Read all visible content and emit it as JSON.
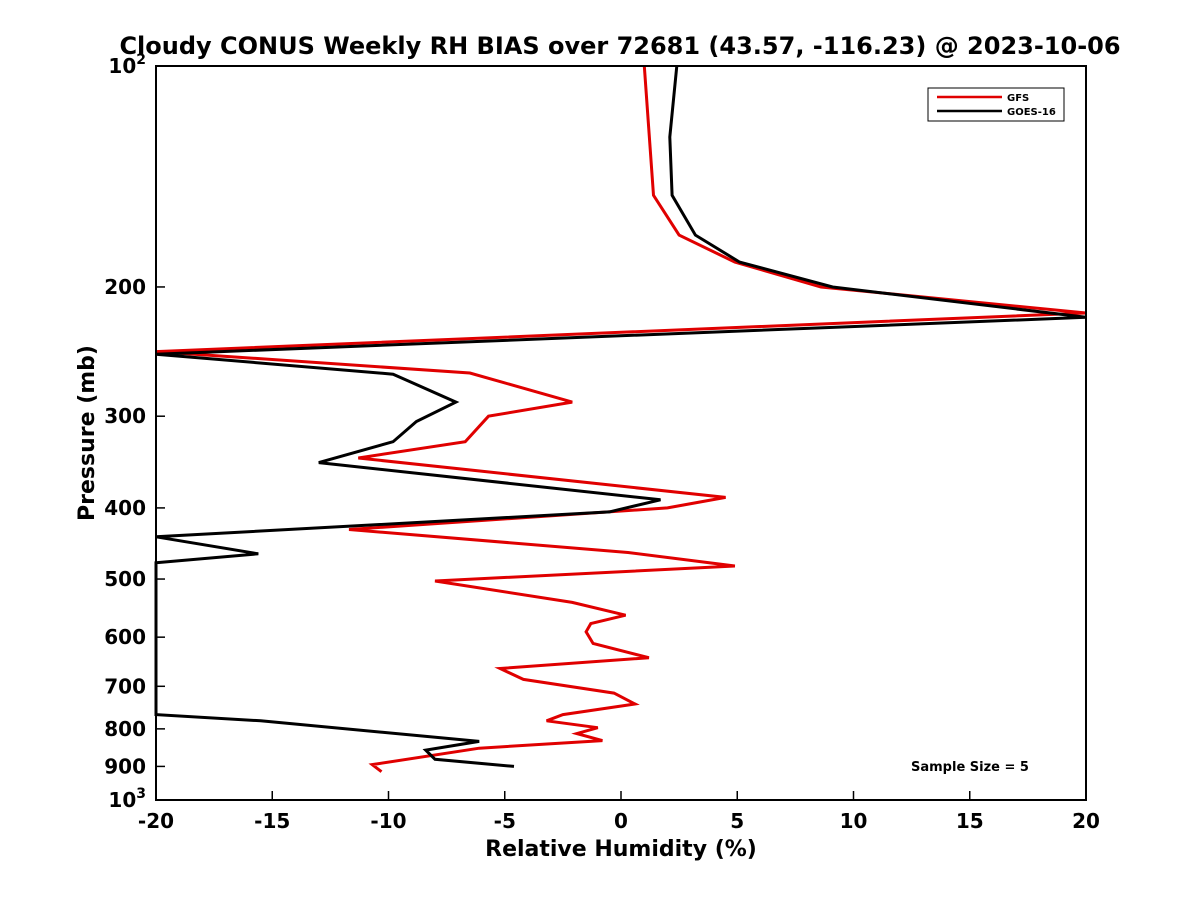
{
  "chart_data": {
    "type": "line",
    "title": "Cloudy CONUS Weekly RH BIAS over 72681 (43.57, -116.23) @ 2023-10-06",
    "xlabel": "Relative Humidity (%)",
    "ylabel": "Pressure (mb)",
    "xlim": [
      -20,
      20
    ],
    "ylim": [
      100,
      1000
    ],
    "y_scale": "log",
    "y_direction": "reversed",
    "x_ticks": [
      "-20",
      "-15",
      "-10",
      "-5",
      "0",
      "5",
      "10",
      "15",
      "20"
    ],
    "y_ticks": [
      {
        "value": 100,
        "label": "10",
        "sup": "2"
      },
      {
        "value": 200,
        "label": "200",
        "sup": ""
      },
      {
        "value": 300,
        "label": "300",
        "sup": ""
      },
      {
        "value": 400,
        "label": "400",
        "sup": ""
      },
      {
        "value": 500,
        "label": "500",
        "sup": ""
      },
      {
        "value": 600,
        "label": "600",
        "sup": ""
      },
      {
        "value": 700,
        "label": "700",
        "sup": ""
      },
      {
        "value": 800,
        "label": "800",
        "sup": ""
      },
      {
        "value": 900,
        "label": "900",
        "sup": ""
      },
      {
        "value": 1000,
        "label": "10",
        "sup": "3"
      }
    ],
    "grid": false,
    "legend_position": "top-right",
    "annotation": "Sample Size = 5",
    "series": [
      {
        "name": "GFS",
        "color": "#e00000",
        "points": [
          {
            "x": 1.0,
            "y": 100
          },
          {
            "x": 1.4,
            "y": 150
          },
          {
            "x": 2.5,
            "y": 170
          },
          {
            "x": 4.9,
            "y": 185
          },
          {
            "x": 8.6,
            "y": 200
          },
          {
            "x": 20.0,
            "y": 217
          },
          {
            "x": -20.0,
            "y": 245
          },
          {
            "x": -6.5,
            "y": 262
          },
          {
            "x": -2.1,
            "y": 287
          },
          {
            "x": -5.7,
            "y": 300
          },
          {
            "x": -6.7,
            "y": 325
          },
          {
            "x": -11.3,
            "y": 342
          },
          {
            "x": 4.5,
            "y": 387
          },
          {
            "x": 2.0,
            "y": 400
          },
          {
            "x": -11.7,
            "y": 428
          },
          {
            "x": 0.3,
            "y": 460
          },
          {
            "x": 4.9,
            "y": 480
          },
          {
            "x": -8.0,
            "y": 503
          },
          {
            "x": -2.1,
            "y": 538
          },
          {
            "x": 0.2,
            "y": 560
          },
          {
            "x": -1.3,
            "y": 575
          },
          {
            "x": -1.5,
            "y": 590
          },
          {
            "x": -1.2,
            "y": 612
          },
          {
            "x": 1.2,
            "y": 640
          },
          {
            "x": -5.2,
            "y": 662
          },
          {
            "x": -4.2,
            "y": 685
          },
          {
            "x": -0.3,
            "y": 715
          },
          {
            "x": 0.6,
            "y": 740
          },
          {
            "x": -2.5,
            "y": 765
          },
          {
            "x": -3.2,
            "y": 780
          },
          {
            "x": -1.0,
            "y": 797
          },
          {
            "x": -1.9,
            "y": 812
          },
          {
            "x": -0.8,
            "y": 830
          },
          {
            "x": -6.1,
            "y": 850
          },
          {
            "x": -10.7,
            "y": 895
          },
          {
            "x": -10.3,
            "y": 915
          }
        ]
      },
      {
        "name": "GOES-16",
        "color": "#000000",
        "points": [
          {
            "x": 2.4,
            "y": 100
          },
          {
            "x": 2.1,
            "y": 125
          },
          {
            "x": 2.2,
            "y": 150
          },
          {
            "x": 3.2,
            "y": 170
          },
          {
            "x": 5.1,
            "y": 185
          },
          {
            "x": 9.1,
            "y": 200
          },
          {
            "x": 20.0,
            "y": 220
          },
          {
            "x": -20.0,
            "y": 247
          },
          {
            "x": -9.8,
            "y": 263
          },
          {
            "x": -7.1,
            "y": 287
          },
          {
            "x": -8.8,
            "y": 305
          },
          {
            "x": -9.8,
            "y": 325
          },
          {
            "x": -13.0,
            "y": 347
          },
          {
            "x": 1.7,
            "y": 390
          },
          {
            "x": -0.5,
            "y": 405
          },
          {
            "x": -20.0,
            "y": 438
          },
          {
            "x": -15.6,
            "y": 462
          },
          {
            "x": -20.0,
            "y": 475
          },
          {
            "x": -20.0,
            "y": 765
          },
          {
            "x": -15.5,
            "y": 780
          },
          {
            "x": -6.1,
            "y": 832
          },
          {
            "x": -8.4,
            "y": 855
          },
          {
            "x": -8.0,
            "y": 880
          },
          {
            "x": -4.6,
            "y": 900
          }
        ]
      }
    ]
  }
}
